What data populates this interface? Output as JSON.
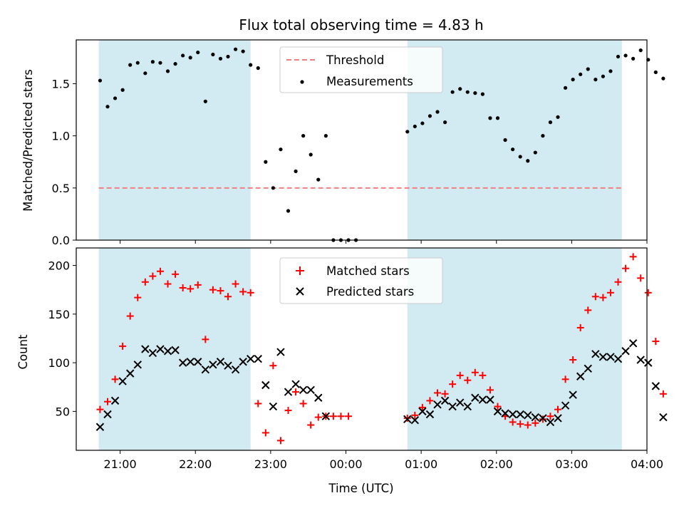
{
  "chart_data": [
    {
      "type": "scatter",
      "title": "Flux total observing time = 4.83 h",
      "xlabel": "",
      "ylabel": "Matched/Predicted stars",
      "ylim": [
        0,
        1.92
      ],
      "yticks": [
        "0.0",
        "0.5",
        "1.0",
        "1.5"
      ],
      "ytick_values": [
        0,
        0.5,
        1.0,
        1.5
      ],
      "threshold": 0.5,
      "threshold_color": "#f08080",
      "shaded_color": "#add8e6",
      "shaded_ranges": [
        [
          "20:43",
          "22:44"
        ],
        [
          "00:49",
          "03:40"
        ]
      ],
      "legend": {
        "position": "upper center",
        "entries": [
          "Threshold",
          "Measurements"
        ]
      },
      "series": [
        {
          "name": "Measurements",
          "marker": "dot",
          "color": "#000000",
          "points": [
            [
              "20:44",
              1.53
            ],
            [
              "20:50",
              1.28
            ],
            [
              "20:56",
              1.36
            ],
            [
              "21:02",
              1.44
            ],
            [
              "21:08",
              1.68
            ],
            [
              "21:14",
              1.7
            ],
            [
              "21:20",
              1.6
            ],
            [
              "21:26",
              1.71
            ],
            [
              "21:32",
              1.7
            ],
            [
              "21:38",
              1.62
            ],
            [
              "21:44",
              1.69
            ],
            [
              "21:50",
              1.77
            ],
            [
              "21:56",
              1.75
            ],
            [
              "22:02",
              1.8
            ],
            [
              "22:08",
              1.33
            ],
            [
              "22:14",
              1.78
            ],
            [
              "22:20",
              1.74
            ],
            [
              "22:26",
              1.76
            ],
            [
              "22:32",
              1.83
            ],
            [
              "22:38",
              1.81
            ],
            [
              "22:44",
              1.68
            ],
            [
              "22:50",
              1.65
            ],
            [
              "22:56",
              0.75
            ],
            [
              "23:02",
              0.5
            ],
            [
              "23:08",
              0.87
            ],
            [
              "23:14",
              0.28
            ],
            [
              "23:20",
              0.66
            ],
            [
              "23:26",
              1.0
            ],
            [
              "23:32",
              0.82
            ],
            [
              "23:38",
              0.58
            ],
            [
              "23:44",
              1.0
            ],
            [
              "23:50",
              0.0
            ],
            [
              "23:56",
              0.0
            ],
            [
              "00:02",
              0.0
            ],
            [
              "00:08",
              0.0
            ],
            [
              "00:49",
              1.04
            ],
            [
              "00:55",
              1.09
            ],
            [
              "01:01",
              1.12
            ],
            [
              "01:07",
              1.19
            ],
            [
              "01:13",
              1.23
            ],
            [
              "01:19",
              1.13
            ],
            [
              "01:25",
              1.42
            ],
            [
              "01:31",
              1.45
            ],
            [
              "01:37",
              1.42
            ],
            [
              "01:43",
              1.41
            ],
            [
              "01:49",
              1.4
            ],
            [
              "01:55",
              1.17
            ],
            [
              "02:01",
              1.17
            ],
            [
              "02:07",
              0.96
            ],
            [
              "02:13",
              0.87
            ],
            [
              "02:19",
              0.8
            ],
            [
              "02:25",
              0.76
            ],
            [
              "02:31",
              0.84
            ],
            [
              "02:37",
              1.0
            ],
            [
              "02:43",
              1.13
            ],
            [
              "02:49",
              1.18
            ],
            [
              "02:55",
              1.46
            ],
            [
              "03:01",
              1.54
            ],
            [
              "03:07",
              1.59
            ],
            [
              "03:13",
              1.64
            ],
            [
              "03:19",
              1.54
            ],
            [
              "03:25",
              1.57
            ],
            [
              "03:31",
              1.62
            ],
            [
              "03:37",
              1.76
            ],
            [
              "03:43",
              1.77
            ],
            [
              "03:49",
              1.74
            ],
            [
              "03:55",
              1.82
            ],
            [
              "04:01",
              1.73
            ],
            [
              "04:07",
              1.61
            ],
            [
              "04:13",
              1.55
            ]
          ]
        }
      ]
    },
    {
      "type": "scatter",
      "title": "",
      "xlabel": "Time (UTC)",
      "ylabel": "Count",
      "ylim": [
        10,
        218
      ],
      "yticks": [
        "50",
        "100",
        "150",
        "200"
      ],
      "ytick_values": [
        50,
        100,
        150,
        200
      ],
      "xticks": [
        "21:00",
        "22:00",
        "23:00",
        "00:00",
        "01:00",
        "02:00",
        "03:00",
        "04:00"
      ],
      "xlim": [
        "20:25",
        "04:00"
      ],
      "shaded_color": "#add8e6",
      "shaded_ranges": [
        [
          "20:43",
          "22:44"
        ],
        [
          "00:49",
          "03:40"
        ]
      ],
      "legend": {
        "position": "upper center",
        "entries": [
          "Matched stars",
          "Predicted stars"
        ]
      },
      "series": [
        {
          "name": "Matched stars",
          "marker": "plus",
          "color": "#ff0000",
          "points": [
            [
              "20:44",
              52
            ],
            [
              "20:50",
              60
            ],
            [
              "20:56",
              83
            ],
            [
              "21:02",
              117
            ],
            [
              "21:08",
              148
            ],
            [
              "21:14",
              167
            ],
            [
              "21:20",
              183
            ],
            [
              "21:26",
              189
            ],
            [
              "21:32",
              194
            ],
            [
              "21:38",
              181
            ],
            [
              "21:44",
              191
            ],
            [
              "21:50",
              177
            ],
            [
              "21:56",
              176
            ],
            [
              "22:02",
              180
            ],
            [
              "22:08",
              124
            ],
            [
              "22:14",
              175
            ],
            [
              "22:20",
              174
            ],
            [
              "22:26",
              168
            ],
            [
              "22:32",
              181
            ],
            [
              "22:38",
              173
            ],
            [
              "22:44",
              172
            ],
            [
              "22:50",
              58
            ],
            [
              "22:56",
              28
            ],
            [
              "23:02",
              97
            ],
            [
              "23:08",
              20
            ],
            [
              "23:14",
              51
            ],
            [
              "23:20",
              70
            ],
            [
              "23:26",
              58
            ],
            [
              "23:32",
              36
            ],
            [
              "23:38",
              44
            ],
            [
              "23:44",
              45
            ],
            [
              "23:50",
              45
            ],
            [
              "23:56",
              45
            ],
            [
              "00:02",
              45
            ],
            [
              "00:49",
              43
            ],
            [
              "00:55",
              46
            ],
            [
              "01:01",
              54
            ],
            [
              "01:07",
              61
            ],
            [
              "01:13",
              69
            ],
            [
              "01:19",
              68
            ],
            [
              "01:25",
              78
            ],
            [
              "01:31",
              87
            ],
            [
              "01:37",
              82
            ],
            [
              "01:43",
              90
            ],
            [
              "01:49",
              87
            ],
            [
              "01:55",
              72
            ],
            [
              "02:01",
              55
            ],
            [
              "02:07",
              45
            ],
            [
              "02:13",
              39
            ],
            [
              "02:19",
              37
            ],
            [
              "02:25",
              36
            ],
            [
              "02:31",
              38
            ],
            [
              "02:37",
              42
            ],
            [
              "02:43",
              45
            ],
            [
              "02:49",
              52
            ],
            [
              "02:55",
              83
            ],
            [
              "03:01",
              103
            ],
            [
              "03:07",
              136
            ],
            [
              "03:13",
              154
            ],
            [
              "03:19",
              168
            ],
            [
              "03:25",
              167
            ],
            [
              "03:31",
              172
            ],
            [
              "03:37",
              183
            ],
            [
              "03:43",
              197
            ],
            [
              "03:49",
              209
            ],
            [
              "03:55",
              187
            ],
            [
              "04:01",
              172
            ],
            [
              "04:07",
              122
            ],
            [
              "04:13",
              68
            ]
          ]
        },
        {
          "name": "Predicted stars",
          "marker": "x",
          "color": "#000000",
          "points": [
            [
              "20:44",
              34
            ],
            [
              "20:50",
              47
            ],
            [
              "20:56",
              61
            ],
            [
              "21:02",
              81
            ],
            [
              "21:08",
              89
            ],
            [
              "21:14",
              98
            ],
            [
              "21:20",
              114
            ],
            [
              "21:26",
              110
            ],
            [
              "21:32",
              114
            ],
            [
              "21:38",
              112
            ],
            [
              "21:44",
              113
            ],
            [
              "21:50",
              100
            ],
            [
              "21:56",
              101
            ],
            [
              "22:02",
              101
            ],
            [
              "22:08",
              93
            ],
            [
              "22:14",
              98
            ],
            [
              "22:20",
              101
            ],
            [
              "22:26",
              97
            ],
            [
              "22:32",
              93
            ],
            [
              "22:38",
              101
            ],
            [
              "22:44",
              104
            ],
            [
              "22:50",
              104
            ],
            [
              "22:56",
              77
            ],
            [
              "23:02",
              55
            ],
            [
              "23:08",
              111
            ],
            [
              "23:14",
              70
            ],
            [
              "23:20",
              78
            ],
            [
              "23:26",
              72
            ],
            [
              "23:32",
              72
            ],
            [
              "23:38",
              64
            ],
            [
              "23:44",
              45
            ],
            [
              "00:49",
              42
            ],
            [
              "00:55",
              41
            ],
            [
              "01:01",
              50
            ],
            [
              "01:07",
              47
            ],
            [
              "01:13",
              57
            ],
            [
              "01:19",
              61
            ],
            [
              "01:25",
              55
            ],
            [
              "01:31",
              59
            ],
            [
              "01:37",
              55
            ],
            [
              "01:43",
              64
            ],
            [
              "01:49",
              62
            ],
            [
              "01:55",
              62
            ],
            [
              "02:01",
              50
            ],
            [
              "02:07",
              48
            ],
            [
              "02:13",
              47
            ],
            [
              "02:19",
              47
            ],
            [
              "02:25",
              46
            ],
            [
              "02:31",
              44
            ],
            [
              "02:37",
              43
            ],
            [
              "02:43",
              39
            ],
            [
              "02:49",
              43
            ],
            [
              "02:55",
              56
            ],
            [
              "03:01",
              67
            ],
            [
              "03:07",
              86
            ],
            [
              "03:13",
              94
            ],
            [
              "03:19",
              109
            ],
            [
              "03:25",
              106
            ],
            [
              "03:31",
              106
            ],
            [
              "03:37",
              104
            ],
            [
              "03:43",
              112
            ],
            [
              "03:49",
              120
            ],
            [
              "03:55",
              103
            ],
            [
              "04:01",
              100
            ],
            [
              "04:07",
              76
            ],
            [
              "04:13",
              44
            ]
          ]
        }
      ]
    }
  ]
}
